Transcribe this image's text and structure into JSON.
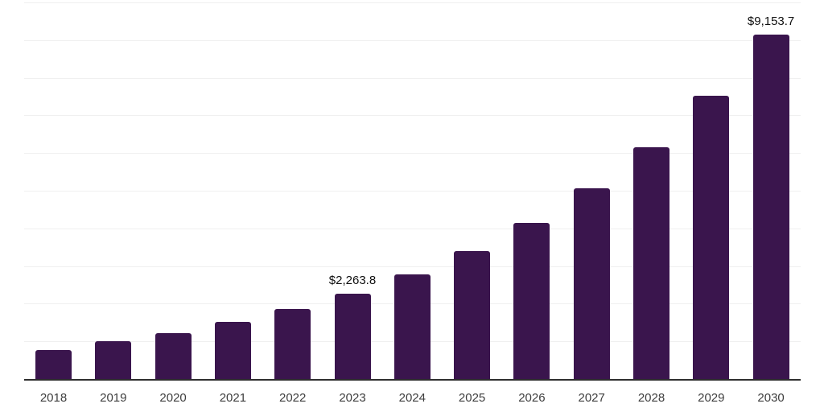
{
  "chart_data": {
    "type": "bar",
    "title": "",
    "xlabel": "",
    "ylabel": "",
    "categories": [
      "2018",
      "2019",
      "2020",
      "2021",
      "2022",
      "2023",
      "2024",
      "2025",
      "2026",
      "2027",
      "2028",
      "2029",
      "2030"
    ],
    "values": [
      780,
      1005,
      1225,
      1525,
      1855,
      2263.8,
      2780,
      3400,
      4140,
      5055,
      6160,
      7520,
      9153.7
    ],
    "data_labels": [
      {
        "category": "2023",
        "text": "$2,263.8"
      },
      {
        "category": "2030",
        "text": "$9,153.7"
      }
    ],
    "ylim": [
      0,
      10000
    ],
    "gridline_step": 1000,
    "grid": "horizontal",
    "legend": "none",
    "y_axis_labels_visible": false
  },
  "colors": {
    "bar": "#3a154d",
    "gridline": "#f0f0f0",
    "axis": "#2e2e2e",
    "tick_label": "#3d3d3d",
    "data_label": "#0f0f0f",
    "background": "#ffffff"
  }
}
